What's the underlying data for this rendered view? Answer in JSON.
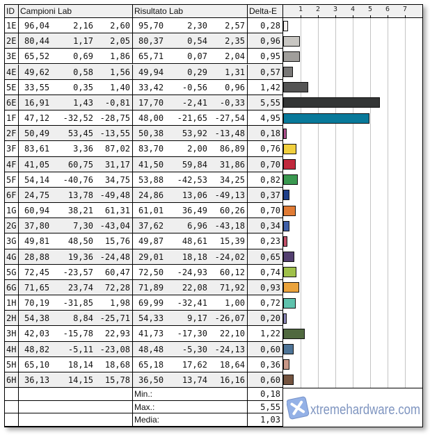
{
  "headers": {
    "id": "ID",
    "campioni": "Campioni Lab",
    "risultato": "Risultato Lab",
    "delta": "Delta-E"
  },
  "chart_data": {
    "type": "bar",
    "orientation": "horizontal",
    "xlim": [
      0,
      8
    ],
    "ticks": [
      "1",
      "2",
      "3",
      "4",
      "5",
      "6",
      "7"
    ],
    "grid": true,
    "categories": [
      "1E",
      "2E",
      "3E",
      "4E",
      "5E",
      "6E",
      "1F",
      "2F",
      "3F",
      "4F",
      "5F",
      "6F",
      "1G",
      "2G",
      "3G",
      "4G",
      "5G",
      "6G",
      "1H",
      "2H",
      "3H",
      "4H",
      "5H",
      "6H"
    ],
    "values": [
      0.28,
      0.96,
      0.95,
      0.57,
      1.42,
      5.55,
      4.95,
      0.18,
      0.76,
      0.7,
      0.82,
      0.37,
      0.7,
      0.34,
      0.23,
      0.65,
      0.74,
      0.93,
      0.72,
      0.2,
      1.22,
      0.6,
      0.36,
      0.6
    ],
    "colors": [
      "#f4f0ee",
      "#c8c6c2",
      "#a09e9b",
      "#787776",
      "#545454",
      "#333535",
      "#08799a",
      "#b0508e",
      "#f0cf3e",
      "#c0283c",
      "#3a9950",
      "#1e3f8a",
      "#e07b35",
      "#3f5fa8",
      "#c25068",
      "#533f70",
      "#9fc04a",
      "#eaa33c",
      "#5fc2ad",
      "#8883b5",
      "#50693f",
      "#4e7497",
      "#c89888",
      "#74533f"
    ]
  },
  "rows": [
    [
      "1E",
      "96,04",
      "2,16",
      "2,60",
      "95,70",
      "2,30",
      "2,57",
      "0,28"
    ],
    [
      "2E",
      "80,44",
      "1,17",
      "2,05",
      "80,37",
      "0,54",
      "2,35",
      "0,96"
    ],
    [
      "3E",
      "65,52",
      "0,69",
      "1,86",
      "65,71",
      "0,07",
      "2,04",
      "0,95"
    ],
    [
      "4E",
      "49,62",
      "0,58",
      "1,56",
      "49,94",
      "0,29",
      "1,31",
      "0,57"
    ],
    [
      "5E",
      "33,55",
      "0,35",
      "1,40",
      "33,42",
      "-0,56",
      "0,96",
      "1,42"
    ],
    [
      "6E",
      "16,91",
      "1,43",
      "-0,81",
      "17,70",
      "-2,41",
      "-0,33",
      "5,55"
    ],
    [
      "1F",
      "47,12",
      "-32,52",
      "-28,75",
      "48,00",
      "-21,65",
      "-27,54",
      "4,95"
    ],
    [
      "2F",
      "50,49",
      "53,45",
      "-13,55",
      "50,38",
      "53,92",
      "-13,48",
      "0,18"
    ],
    [
      "3F",
      "83,61",
      "3,36",
      "87,02",
      "83,70",
      "2,00",
      "86,89",
      "0,76"
    ],
    [
      "4F",
      "41,05",
      "60,75",
      "31,17",
      "41,50",
      "59,84",
      "31,86",
      "0,70"
    ],
    [
      "5F",
      "54,14",
      "-40,76",
      "34,75",
      "53,88",
      "-42,53",
      "34,25",
      "0,82"
    ],
    [
      "6F",
      "24,75",
      "13,78",
      "-49,48",
      "24,86",
      "13,06",
      "-49,13",
      "0,37"
    ],
    [
      "1G",
      "60,94",
      "38,21",
      "61,31",
      "61,01",
      "36,49",
      "60,26",
      "0,70"
    ],
    [
      "2G",
      "37,80",
      "7,30",
      "-43,04",
      "37,62",
      "6,96",
      "-43,18",
      "0,34"
    ],
    [
      "3G",
      "49,81",
      "48,50",
      "15,76",
      "49,87",
      "48,61",
      "15,39",
      "0,23"
    ],
    [
      "4G",
      "28,88",
      "19,36",
      "-24,48",
      "29,01",
      "18,18",
      "-24,02",
      "0,65"
    ],
    [
      "5G",
      "72,45",
      "-23,57",
      "60,47",
      "72,50",
      "-24,93",
      "60,12",
      "0,74"
    ],
    [
      "6G",
      "71,65",
      "23,74",
      "72,28",
      "71,89",
      "22,08",
      "71,92",
      "0,93"
    ],
    [
      "1H",
      "70,19",
      "-31,85",
      "1,98",
      "69,99",
      "-32,41",
      "1,00",
      "0,72"
    ],
    [
      "2H",
      "54,38",
      "8,84",
      "-25,71",
      "54,33",
      "9,17",
      "-26,07",
      "0,20"
    ],
    [
      "3H",
      "42,03",
      "-15,78",
      "22,93",
      "41,73",
      "-17,30",
      "22,10",
      "1,22"
    ],
    [
      "4H",
      "48,82",
      "-5,11",
      "-23,08",
      "48,48",
      "-5,30",
      "-24,13",
      "0,60"
    ],
    [
      "5H",
      "65,10",
      "18,14",
      "18,68",
      "65,18",
      "17,62",
      "18,64",
      "0,36"
    ],
    [
      "6H",
      "36,13",
      "14,15",
      "15,78",
      "36,50",
      "13,74",
      "16,16",
      "0,60"
    ]
  ],
  "summary": [
    {
      "label": "Min.:",
      "value": "0,18"
    },
    {
      "label": "Max.:",
      "value": "5,55"
    },
    {
      "label": "Media:",
      "value": "1,03"
    }
  ],
  "watermark": {
    "text": "xtremehardware.com"
  }
}
